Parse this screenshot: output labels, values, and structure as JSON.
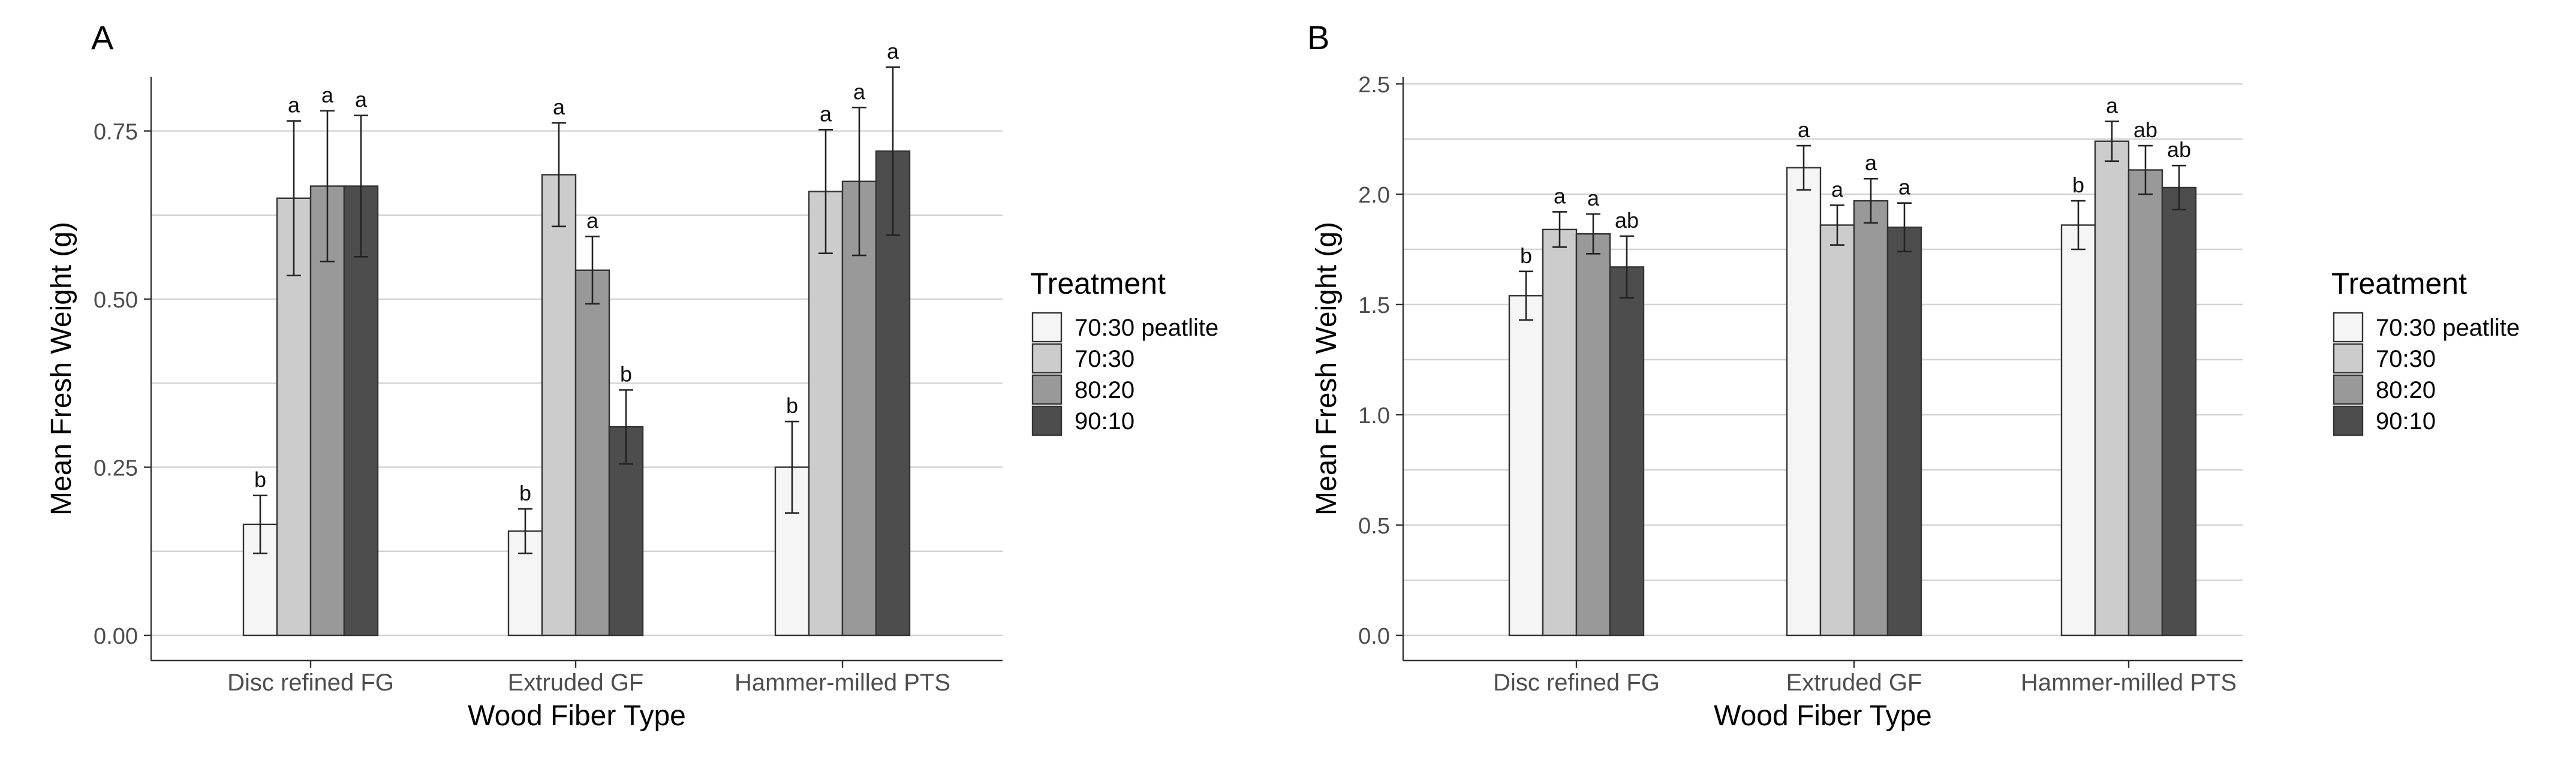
{
  "chart_data": [
    {
      "type": "bar",
      "panel_label": "A",
      "xlabel": "Wood Fiber Type",
      "ylabel": "Mean Fresh Weight (g)",
      "categories": [
        "Disc refined FG",
        "Extruded GF",
        "Hammer-milled PTS"
      ],
      "ylim": [
        0,
        0.82
      ],
      "y_ticks": [
        0.0,
        0.25,
        0.5,
        0.75
      ],
      "y_tick_labels": [
        "0.00",
        "0.25",
        "0.50",
        "0.75"
      ],
      "y_minor_ticks": [
        0.125,
        0.375,
        0.625
      ],
      "grid": true,
      "legend_title": "Treatment",
      "series": [
        {
          "name": "70:30 peatlite",
          "color": "#f5f5f5",
          "values": [
            0.165,
            0.155,
            0.25
          ],
          "err": [
            0.043,
            0.033,
            0.068
          ],
          "letters": [
            "b",
            "b",
            "b"
          ]
        },
        {
          "name": "70:30",
          "color": "#cccccc",
          "values": [
            0.65,
            0.685,
            0.66
          ],
          "err": [
            0.115,
            0.077,
            0.092
          ],
          "letters": [
            "a",
            "a",
            "a"
          ]
        },
        {
          "name": "80:20",
          "color": "#999999",
          "values": [
            0.668,
            0.543,
            0.675
          ],
          "err": [
            0.112,
            0.05,
            0.11
          ],
          "letters": [
            "a",
            "a",
            "a"
          ]
        },
        {
          "name": "90:10",
          "color": "#4d4d4d",
          "values": [
            0.668,
            0.31,
            0.72
          ],
          "err": [
            0.105,
            0.055,
            0.125
          ],
          "letters": [
            "a",
            "b",
            "a"
          ]
        }
      ]
    },
    {
      "type": "bar",
      "panel_label": "B",
      "xlabel": "Wood Fiber Type",
      "ylabel": "Mean Fresh Weight (g)",
      "categories": [
        "Disc refined FG",
        "Extruded GF",
        "Hammer-milled PTS"
      ],
      "ylim": [
        0,
        2.5
      ],
      "y_ticks": [
        0.0,
        0.5,
        1.0,
        1.5,
        2.0,
        2.5
      ],
      "y_tick_labels": [
        "0.0",
        "0.5",
        "1.0",
        "1.5",
        "2.0",
        "2.5"
      ],
      "y_minor_ticks": [
        0.25,
        0.75,
        1.25,
        1.75,
        2.25
      ],
      "grid": true,
      "legend_title": "Treatment",
      "series": [
        {
          "name": "70:30 peatlite",
          "color": "#f5f5f5",
          "values": [
            1.54,
            2.12,
            1.86
          ],
          "err": [
            0.11,
            0.1,
            0.11
          ],
          "letters": [
            "b",
            "a",
            "b"
          ]
        },
        {
          "name": "70:30",
          "color": "#cccccc",
          "values": [
            1.84,
            1.86,
            2.24
          ],
          "err": [
            0.08,
            0.09,
            0.09
          ],
          "letters": [
            "a",
            "a",
            "a"
          ]
        },
        {
          "name": "80:20",
          "color": "#999999",
          "values": [
            1.82,
            1.97,
            2.11
          ],
          "err": [
            0.09,
            0.1,
            0.11
          ],
          "letters": [
            "a",
            "a",
            "ab"
          ]
        },
        {
          "name": "90:10",
          "color": "#4d4d4d",
          "values": [
            1.67,
            1.85,
            2.03
          ],
          "err": [
            0.14,
            0.11,
            0.1
          ],
          "letters": [
            "ab",
            "a",
            "ab"
          ]
        }
      ]
    }
  ]
}
